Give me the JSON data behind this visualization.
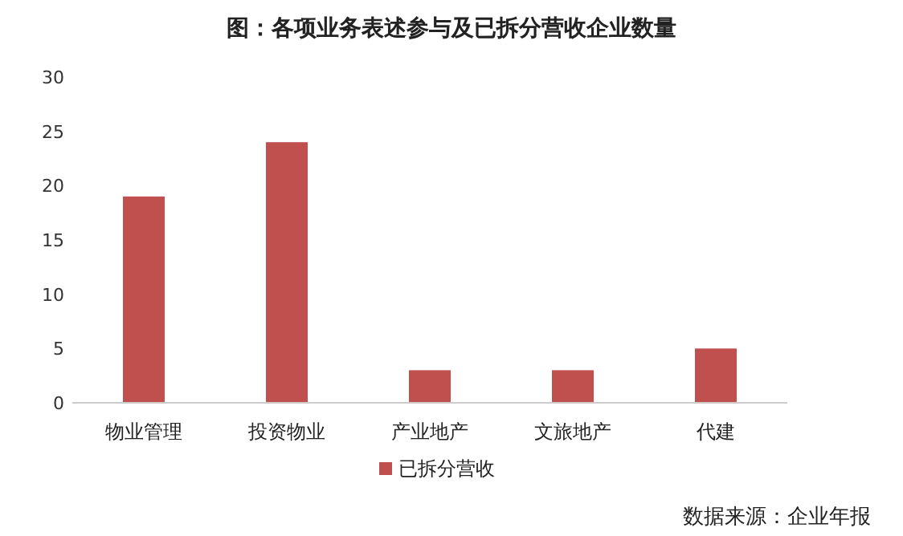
{
  "chart_data": {
    "type": "bar",
    "title": "图：各项业务表述参与及已拆分营收企业数量",
    "categories": [
      "物业管理",
      "投资物业",
      "产业地产",
      "文旅地产",
      "代建"
    ],
    "series": [
      {
        "name": "已拆分营收",
        "color": "#c0504d",
        "values": [
          19,
          24,
          3,
          3,
          5
        ]
      }
    ],
    "ylim": [
      0,
      30
    ],
    "yticks": [
      0,
      5,
      10,
      15,
      20,
      25,
      30
    ],
    "grid": false,
    "legend": "bottom",
    "annotations": [
      "数据来源：企业年报"
    ]
  }
}
